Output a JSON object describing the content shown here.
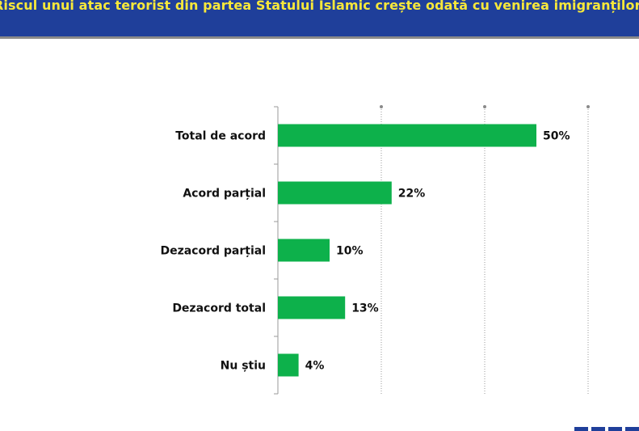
{
  "header": {
    "title": "Riscul unui atac terorist din partea Statului Islamic crește odată cu venirea imigranților"
  },
  "colors": {
    "header_bg": "#1f3f9a",
    "header_text": "#f7e83a",
    "bar": "#0db14b"
  },
  "chart_data": {
    "type": "bar",
    "orientation": "horizontal",
    "categories": [
      "Total de acord",
      "Acord parțial",
      "Dezacord parțial",
      "Dezacord total",
      "Nu știu"
    ],
    "values": [
      50,
      22,
      10,
      13,
      4
    ],
    "value_labels": [
      "50%",
      "22%",
      "10%",
      "13%",
      "4%"
    ],
    "xlim": [
      0,
      60
    ],
    "grid": "vertical dotted",
    "legend": "none"
  }
}
